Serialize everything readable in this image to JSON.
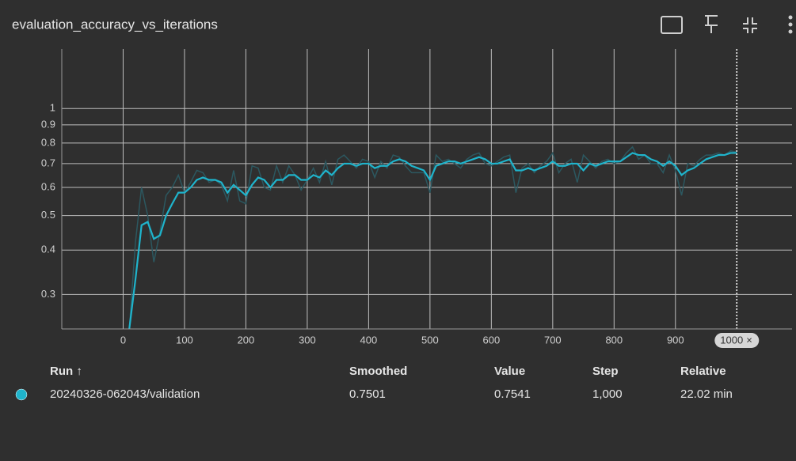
{
  "chart_data": {
    "type": "line",
    "title": "evaluation_accuracy_vs_iterations",
    "log_y": true,
    "grid": true,
    "x": [
      10,
      20,
      30,
      40,
      50,
      60,
      70,
      80,
      90,
      100,
      110,
      120,
      130,
      140,
      150,
      160,
      170,
      180,
      190,
      200,
      210,
      220,
      230,
      240,
      250,
      260,
      270,
      280,
      290,
      300,
      310,
      320,
      330,
      340,
      350,
      360,
      370,
      380,
      390,
      400,
      410,
      420,
      430,
      440,
      450,
      460,
      470,
      480,
      490,
      500,
      510,
      520,
      530,
      540,
      550,
      560,
      570,
      580,
      590,
      600,
      610,
      620,
      630,
      640,
      650,
      660,
      670,
      680,
      690,
      700,
      710,
      720,
      730,
      740,
      750,
      760,
      770,
      780,
      790,
      800,
      810,
      820,
      830,
      840,
      850,
      860,
      870,
      880,
      890,
      900,
      910,
      920,
      930,
      940,
      950,
      960,
      970,
      980,
      990,
      1000
    ],
    "series": [
      {
        "name": "raw",
        "color": "#2c5860",
        "values": [
          0.24,
          0.42,
          0.6,
          0.5,
          0.37,
          0.45,
          0.57,
          0.6,
          0.65,
          0.58,
          0.62,
          0.67,
          0.66,
          0.62,
          0.63,
          0.61,
          0.55,
          0.67,
          0.55,
          0.54,
          0.69,
          0.68,
          0.6,
          0.59,
          0.69,
          0.62,
          0.69,
          0.65,
          0.59,
          0.63,
          0.68,
          0.62,
          0.71,
          0.61,
          0.72,
          0.74,
          0.71,
          0.68,
          0.72,
          0.71,
          0.64,
          0.71,
          0.68,
          0.74,
          0.73,
          0.69,
          0.66,
          0.66,
          0.66,
          0.58,
          0.74,
          0.71,
          0.72,
          0.7,
          0.68,
          0.72,
          0.74,
          0.75,
          0.7,
          0.69,
          0.71,
          0.73,
          0.74,
          0.58,
          0.68,
          0.7,
          0.66,
          0.69,
          0.71,
          0.75,
          0.66,
          0.7,
          0.72,
          0.62,
          0.74,
          0.71,
          0.68,
          0.71,
          0.72,
          0.7,
          0.71,
          0.75,
          0.78,
          0.72,
          0.74,
          0.7,
          0.7,
          0.66,
          0.74,
          0.67,
          0.57,
          0.7,
          0.69,
          0.72,
          0.74,
          0.74,
          0.75,
          0.74,
          0.76,
          0.7541
        ]
      },
      {
        "name": "smoothed",
        "color": "#1fb4cc",
        "values": [
          0.24,
          0.33,
          0.47,
          0.48,
          0.43,
          0.44,
          0.5,
          0.54,
          0.58,
          0.58,
          0.6,
          0.63,
          0.64,
          0.63,
          0.63,
          0.62,
          0.58,
          0.61,
          0.59,
          0.57,
          0.61,
          0.64,
          0.63,
          0.6,
          0.63,
          0.63,
          0.65,
          0.65,
          0.63,
          0.63,
          0.65,
          0.64,
          0.67,
          0.65,
          0.68,
          0.7,
          0.7,
          0.69,
          0.7,
          0.7,
          0.68,
          0.69,
          0.69,
          0.71,
          0.72,
          0.71,
          0.69,
          0.68,
          0.67,
          0.63,
          0.69,
          0.7,
          0.71,
          0.71,
          0.7,
          0.71,
          0.72,
          0.73,
          0.72,
          0.7,
          0.7,
          0.71,
          0.72,
          0.67,
          0.67,
          0.68,
          0.67,
          0.68,
          0.69,
          0.71,
          0.69,
          0.69,
          0.7,
          0.7,
          0.67,
          0.7,
          0.69,
          0.7,
          0.71,
          0.71,
          0.71,
          0.73,
          0.75,
          0.74,
          0.74,
          0.72,
          0.71,
          0.69,
          0.71,
          0.69,
          0.65,
          0.67,
          0.68,
          0.7,
          0.72,
          0.73,
          0.74,
          0.74,
          0.75,
          0.7501
        ]
      }
    ],
    "xlim": [
      -100,
      1090
    ],
    "xticks": [
      0,
      100,
      200,
      300,
      400,
      500,
      600,
      700,
      800,
      900
    ],
    "ylim": [
      0.24,
      1.47
    ],
    "yticks": [
      0.3,
      0.4,
      0.5,
      0.6,
      0.7,
      0.8,
      0.9,
      1
    ],
    "cursor_x": 1000
  },
  "table": {
    "headers": [
      "Run ↑",
      "Smoothed",
      "Value",
      "Step",
      "Relative"
    ],
    "rows": [
      [
        "20240326-062043/validation",
        "0.7501",
        "0.7541",
        "1,000",
        "22.02 min"
      ]
    ]
  }
}
